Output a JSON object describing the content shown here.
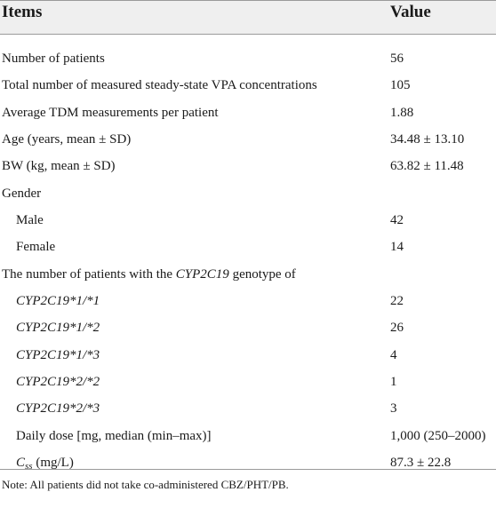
{
  "header": {
    "items_label": "Items",
    "value_label": "Value"
  },
  "rows": [
    {
      "item": "Number of patients",
      "value": "56"
    },
    {
      "item": "Total number of measured steady-state VPA concentrations",
      "value": "105"
    },
    {
      "item": "Average TDM measurements per patient",
      "value": "1.88"
    },
    {
      "item": "Age (years, mean ± SD)",
      "value": "34.48 ± 13.10"
    },
    {
      "item": "BW (kg, mean ± SD)",
      "value": "63.82 ± 11.48"
    },
    {
      "item": "Gender",
      "value": ""
    },
    {
      "item": "Male",
      "value": "42"
    },
    {
      "item": "Female",
      "value": "14"
    },
    {
      "item_prefix": "The number of patients with the ",
      "item_italic": "CYP2C19",
      "item_suffix": " genotype of",
      "value": ""
    },
    {
      "item": "CYP2C19*1/*1",
      "value": "22"
    },
    {
      "item": "CYP2C19*1/*2",
      "value": "26"
    },
    {
      "item": "CYP2C19*1/*3",
      "value": "4"
    },
    {
      "item": "CYP2C19*2/*2",
      "value": "1"
    },
    {
      "item": "CYP2C19*2/*3",
      "value": "3"
    },
    {
      "item": "Daily dose [mg, median (min–max)]",
      "value": "1,000 (250–2000)"
    },
    {
      "item_main": "C",
      "item_sub": "ss",
      "item_suffix": " (mg/L)",
      "value": "87.3 ± 22.8"
    }
  ],
  "note": "Note: All patients did not take co-administered CBZ/PHT/PB."
}
